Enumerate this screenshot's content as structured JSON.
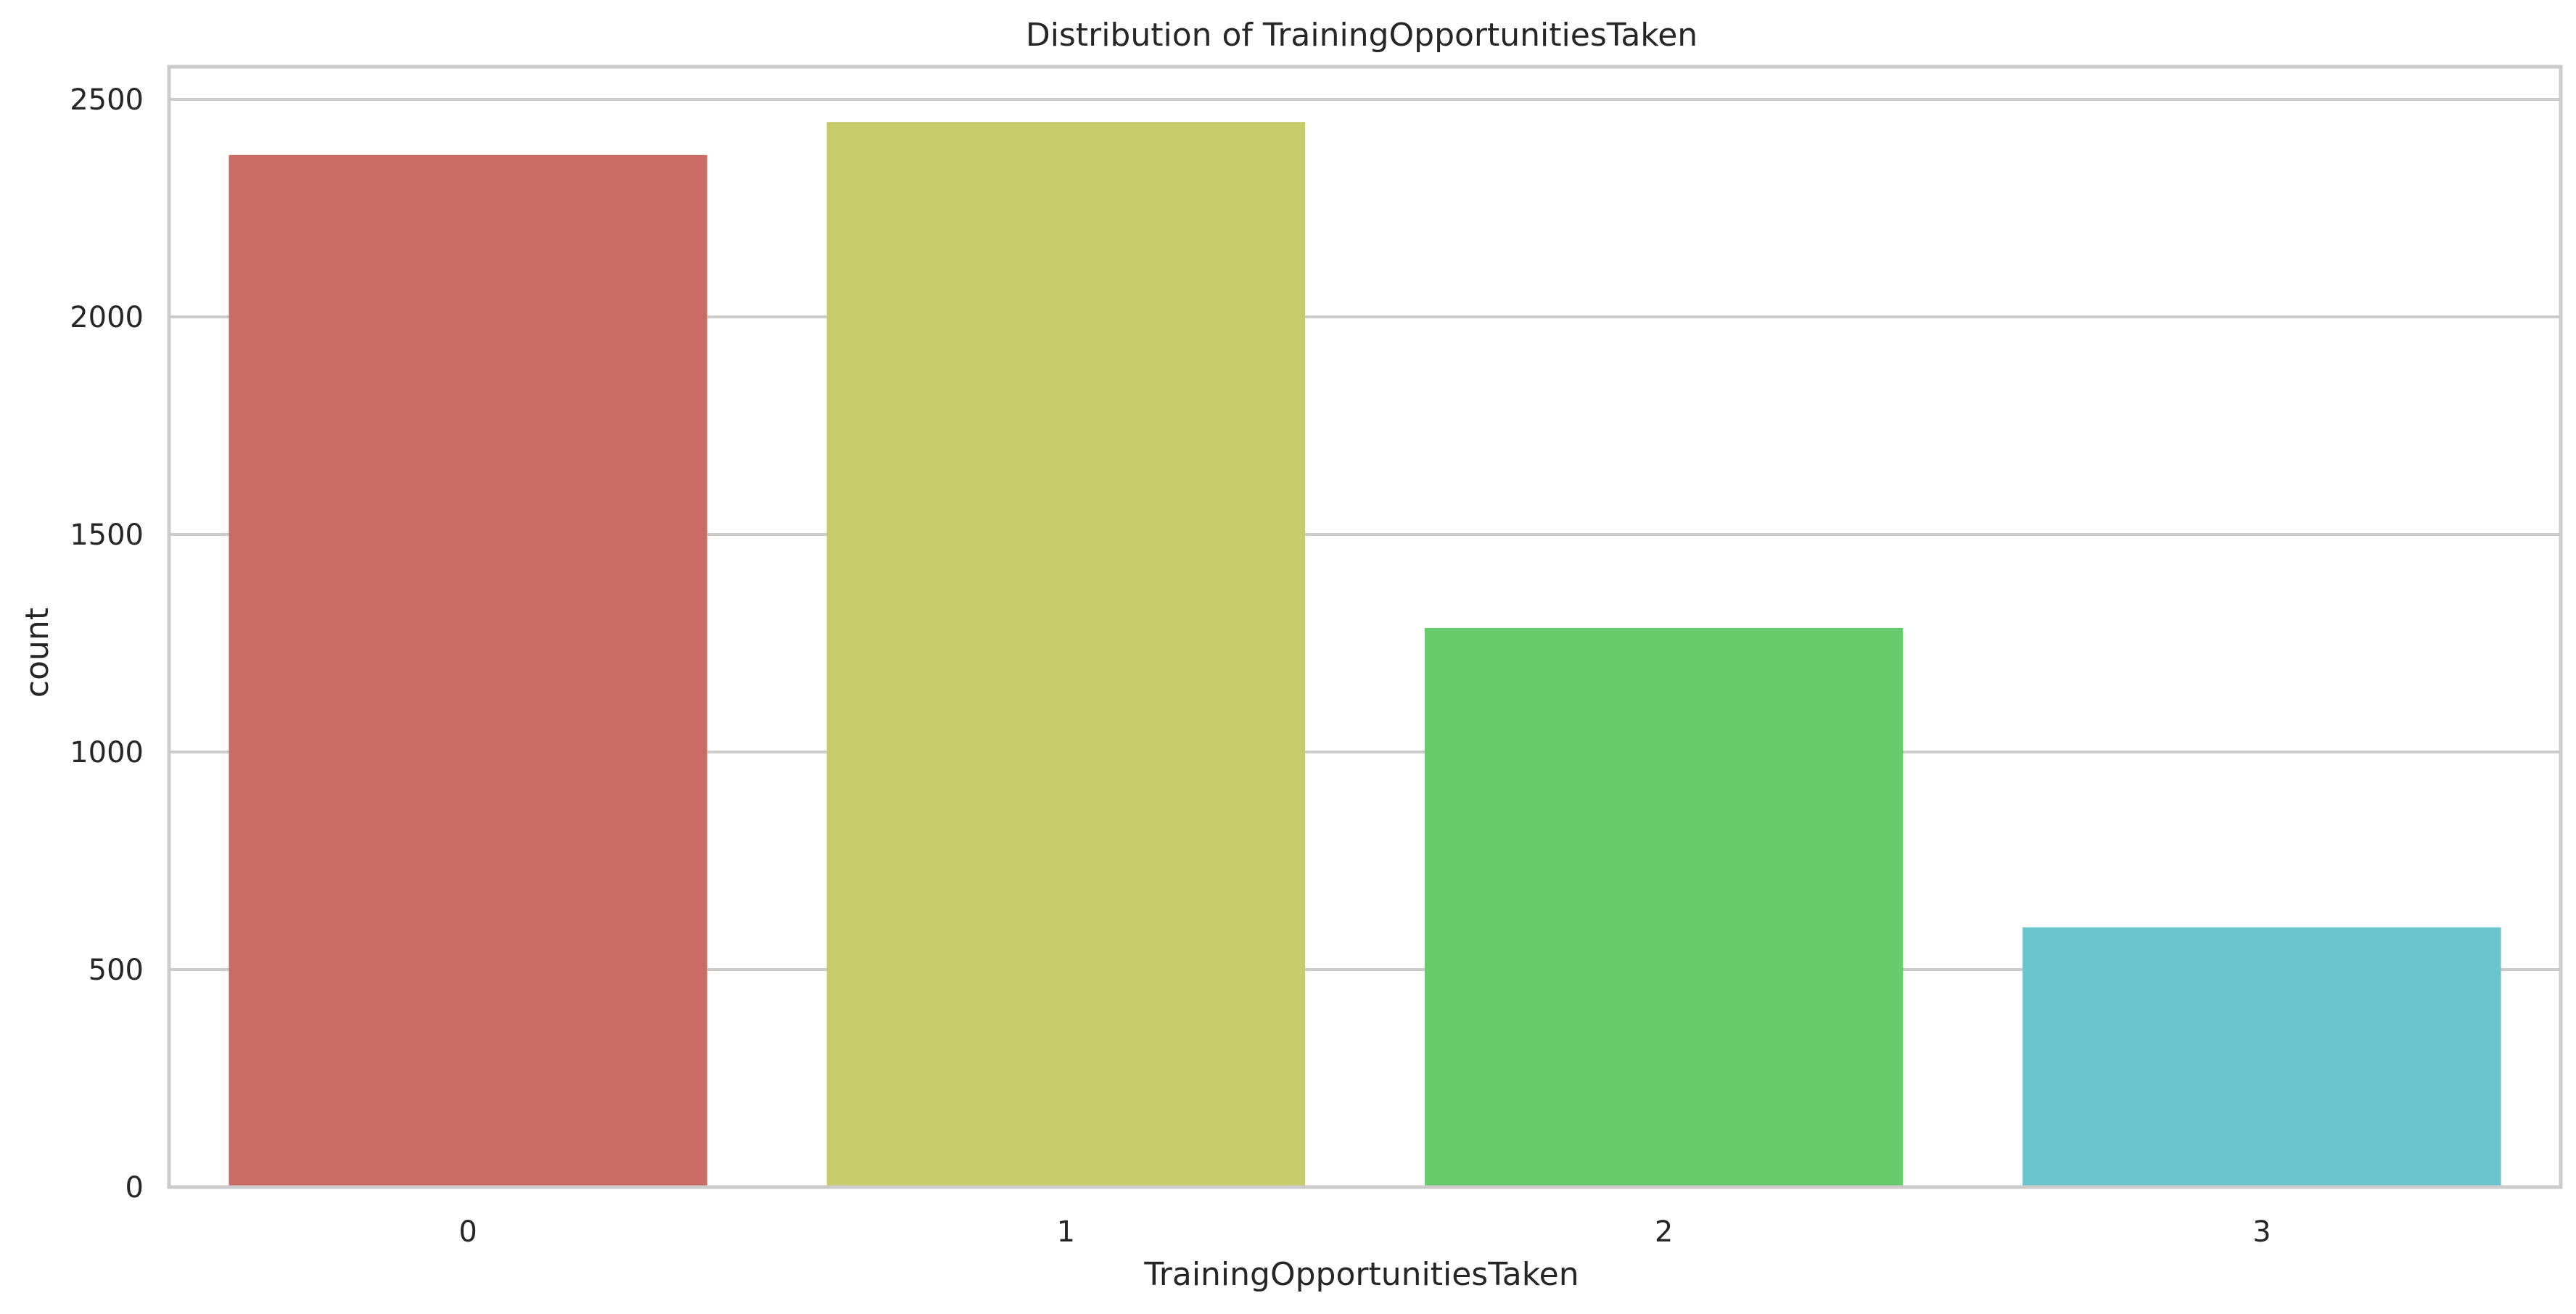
{
  "chart_data": {
    "type": "bar",
    "title": "Distribution of TrainingOpportunitiesTaken",
    "xlabel": "TrainingOpportunitiesTaken",
    "ylabel": "count",
    "categories": [
      "0",
      "1",
      "2",
      "3"
    ],
    "values": [
      2372,
      2448,
      1285,
      597
    ],
    "colors": [
      "#ca6c64",
      "#c6cc6a",
      "#68cc6d",
      "#69c4cb"
    ],
    "ylim": [
      0,
      2575
    ],
    "yticks": [
      0,
      500,
      1000,
      1500,
      2000,
      2500
    ],
    "grid": "horizontal",
    "legend": "none"
  }
}
